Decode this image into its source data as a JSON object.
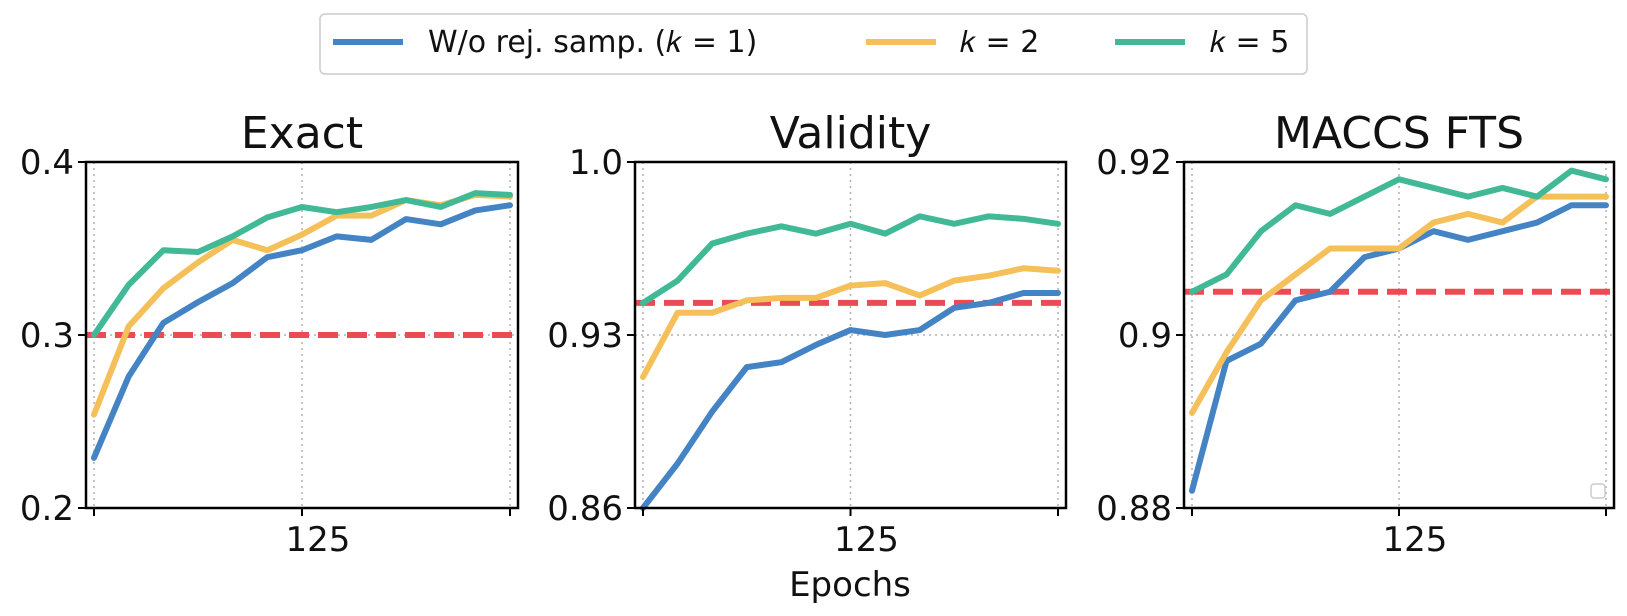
{
  "colors": {
    "k1": "#4483c4",
    "k2": "#f5c05a",
    "k5": "#42b996",
    "baseline": "#eb4b55",
    "grid": "#b0b0b0",
    "axis": "#000000"
  },
  "legend": {
    "k1_label": "W/o rej. samp. (𝑘 = 1)",
    "k2_label": "𝑘 = 2",
    "k5_label": "𝑘 = 5"
  },
  "xlabel": "Epochs",
  "chart_data": [
    {
      "type": "line",
      "title": "Exact",
      "xlabel": "",
      "ylabel": "",
      "x": [
        1,
        2,
        3,
        4,
        5,
        6,
        7,
        8,
        9,
        10,
        11,
        12,
        13
      ],
      "xtick_values": [
        7
      ],
      "xtick_labels": [
        "125"
      ],
      "ylim": [
        0.2,
        0.4
      ],
      "ytick_values": [
        0.2,
        0.3,
        0.4
      ],
      "ytick_labels": [
        "0.2",
        "0.3",
        "0.4"
      ],
      "baseline": 0.3,
      "series": [
        {
          "name": "W/o rej. samp. (k = 1)",
          "key": "k1",
          "values": [
            0.229,
            0.276,
            0.307,
            0.319,
            0.33,
            0.345,
            0.349,
            0.357,
            0.355,
            0.367,
            0.364,
            0.372,
            0.375
          ]
        },
        {
          "name": "k = 2",
          "key": "k2",
          "values": [
            0.254,
            0.305,
            0.327,
            0.342,
            0.355,
            0.349,
            0.358,
            0.369,
            0.369,
            0.378,
            0.375,
            0.381,
            0.38
          ]
        },
        {
          "name": "k = 5",
          "key": "k5",
          "values": [
            0.3,
            0.329,
            0.349,
            0.348,
            0.357,
            0.368,
            0.374,
            0.371,
            0.374,
            0.378,
            0.374,
            0.382,
            0.381
          ]
        }
      ]
    },
    {
      "type": "line",
      "title": "Validity",
      "xlabel": "Epochs",
      "ylabel": "",
      "x": [
        1,
        2,
        3,
        4,
        5,
        6,
        7,
        8,
        9,
        10,
        11,
        12,
        13
      ],
      "xtick_values": [
        7
      ],
      "xtick_labels": [
        "125"
      ],
      "ylim": [
        0.86,
        1.0
      ],
      "ytick_values": [
        0.86,
        0.93,
        1.0
      ],
      "ytick_labels": [
        "0.86",
        "0.93",
        "1.0"
      ],
      "baseline": 0.943,
      "series": [
        {
          "name": "W/o rej. samp. (k = 1)",
          "key": "k1",
          "values": [
            0.86,
            0.878,
            0.899,
            0.917,
            0.919,
            0.926,
            0.932,
            0.93,
            0.932,
            0.941,
            0.943,
            0.947,
            0.947
          ]
        },
        {
          "name": "k = 2",
          "key": "k2",
          "values": [
            0.913,
            0.939,
            0.939,
            0.944,
            0.945,
            0.945,
            0.95,
            0.951,
            0.946,
            0.952,
            0.954,
            0.957,
            0.956
          ]
        },
        {
          "name": "k = 5",
          "key": "k5",
          "values": [
            0.943,
            0.952,
            0.967,
            0.971,
            0.974,
            0.971,
            0.975,
            0.971,
            0.978,
            0.975,
            0.978,
            0.977,
            0.975
          ]
        }
      ]
    },
    {
      "type": "line",
      "title": "MACCS FTS",
      "xlabel": "",
      "ylabel": "",
      "x": [
        1,
        2,
        3,
        4,
        5,
        6,
        7,
        8,
        9,
        10,
        11,
        12,
        13
      ],
      "xtick_values": [
        7
      ],
      "xtick_labels": [
        "125"
      ],
      "ylim": [
        0.88,
        0.92
      ],
      "ytick_values": [
        0.88,
        0.9,
        0.92
      ],
      "ytick_labels": [
        "0.88",
        "0.9",
        "0.92"
      ],
      "baseline": 0.905,
      "series": [
        {
          "name": "W/o rej. samp. (k = 1)",
          "key": "k1",
          "values": [
            0.882,
            0.897,
            0.899,
            0.904,
            0.905,
            0.909,
            0.91,
            0.912,
            0.911,
            0.912,
            0.913,
            0.915,
            0.915
          ]
        },
        {
          "name": "k = 2",
          "key": "k2",
          "values": [
            0.891,
            0.898,
            0.904,
            0.907,
            0.91,
            0.91,
            0.91,
            0.913,
            0.914,
            0.913,
            0.916,
            0.916,
            0.916
          ]
        },
        {
          "name": "k = 5",
          "key": "k5",
          "values": [
            0.905,
            0.907,
            0.912,
            0.915,
            0.914,
            0.916,
            0.918,
            0.917,
            0.916,
            0.917,
            0.916,
            0.919,
            0.918
          ]
        }
      ]
    }
  ]
}
